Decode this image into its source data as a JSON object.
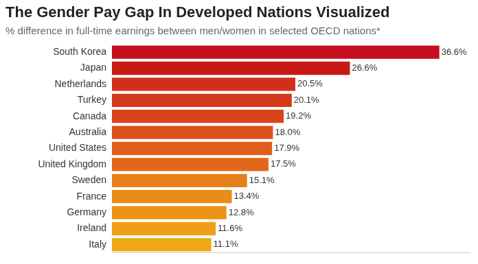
{
  "chart_data": {
    "type": "bar",
    "orientation": "horizontal",
    "title": "The Gender Pay Gap In Developed Nations Visualized",
    "subtitle": "% difference in full-time earnings between men/women in selected OECD nations*",
    "categories": [
      "South Korea",
      "Japan",
      "Netherlands",
      "Turkey",
      "Canada",
      "Australia",
      "United States",
      "United Kingdom",
      "Sweden",
      "France",
      "Germany",
      "Ireland",
      "Italy"
    ],
    "values": [
      36.6,
      26.6,
      20.5,
      20.1,
      19.2,
      18.0,
      17.9,
      17.5,
      15.1,
      13.4,
      12.8,
      11.6,
      11.1
    ],
    "value_labels": [
      "36.6%",
      "26.6%",
      "20.5%",
      "20.1%",
      "19.2%",
      "18.0%",
      "17.9%",
      "17.5%",
      "15.1%",
      "13.4%",
      "12.8%",
      "11.6%",
      "11.1%"
    ],
    "colors": [
      "#c40d1e",
      "#c81a14",
      "#d02f18",
      "#d5381a",
      "#d9431b",
      "#dd521b",
      "#e05e1b",
      "#e2661b",
      "#e67e19",
      "#e98c18",
      "#eb9317",
      "#ed9f16",
      "#efa716"
    ],
    "xlim": [
      0,
      40
    ],
    "grid": false,
    "tick_labels": "y",
    "data_labels": true
  }
}
